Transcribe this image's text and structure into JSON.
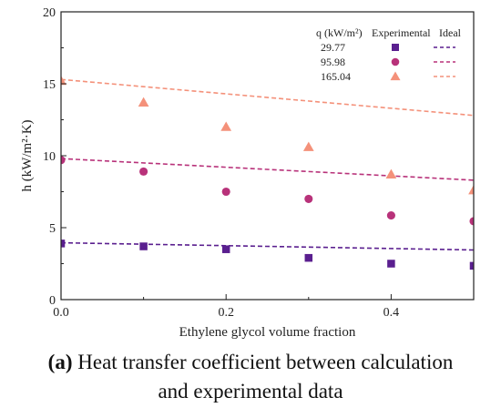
{
  "caption": {
    "label": "a",
    "text_line1": "Heat transfer coefficient between calculation",
    "text_line2": "and experimental data"
  },
  "chart_data": {
    "type": "scatter",
    "xlabel": "Ethylene glycol volume fraction",
    "ylabel": "h (kW/m²·K)",
    "xlim": [
      0.0,
      0.5
    ],
    "ylim": [
      0,
      20
    ],
    "x_ticks": [
      0.0,
      0.2,
      0.4
    ],
    "x_tick_labels": [
      "0.0",
      "0.2",
      "0.4"
    ],
    "y_ticks": [
      0,
      5,
      10,
      15,
      20
    ],
    "y_tick_labels": [
      "0",
      "5",
      "10",
      "15",
      "20"
    ],
    "grid": false,
    "legend": {
      "placement": "top-right",
      "header_q": "q (kW/m²)",
      "header_experimental": "Experimental",
      "header_ideal": "Ideal"
    },
    "series": [
      {
        "name": "29.77",
        "marker": "square",
        "color": "#5a1f8f",
        "x": [
          0.0,
          0.1,
          0.2,
          0.3,
          0.4,
          0.5
        ],
        "y": [
          3.9,
          3.7,
          3.5,
          2.9,
          2.5,
          2.35
        ],
        "ideal": {
          "x": [
            0.0,
            0.5
          ],
          "y": [
            3.95,
            3.45
          ]
        }
      },
      {
        "name": "95.98",
        "marker": "circle",
        "color": "#b8327a",
        "x": [
          0.0,
          0.1,
          0.2,
          0.3,
          0.4,
          0.5
        ],
        "y": [
          9.7,
          8.9,
          7.5,
          7.0,
          5.85,
          5.45
        ],
        "ideal": {
          "x": [
            0.0,
            0.5
          ],
          "y": [
            9.8,
            8.3
          ]
        }
      },
      {
        "name": "165.04",
        "marker": "triangle",
        "color": "#f4917a",
        "x": [
          0.0,
          0.1,
          0.2,
          0.3,
          0.4,
          0.5
        ],
        "y": [
          15.2,
          13.7,
          12.0,
          10.6,
          8.7,
          7.6
        ],
        "ideal": {
          "x": [
            0.0,
            0.5
          ],
          "y": [
            15.3,
            12.8
          ]
        }
      }
    ]
  }
}
